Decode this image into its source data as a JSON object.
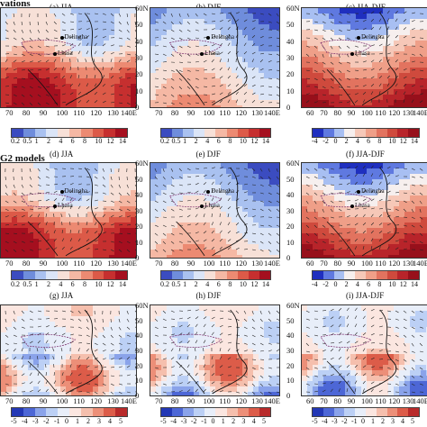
{
  "rows": [
    {
      "title": "vations",
      "panels": [
        {
          "label": "(a) JJA",
          "stations": [
            "Delingha",
            "Lhasa"
          ],
          "ticks_x": [
            "70",
            "80",
            "90",
            "100",
            "110",
            "120",
            "130",
            "140E"
          ],
          "ticks_y": [],
          "cbar_labels": [
            "0.2",
            "0.5",
            "1",
            "2",
            "4",
            "6",
            "8",
            "10",
            "12",
            "14"
          ],
          "scheme": "pos"
        },
        {
          "label": "(b) DJF",
          "stations": [
            "Delingha",
            "Lhasa"
          ],
          "ticks_x": [
            "70",
            "80",
            "90",
            "100",
            "110",
            "120",
            "130",
            "140E"
          ],
          "ticks_y": [
            "60N",
            "50",
            "40",
            "30",
            "20",
            "10",
            "0"
          ],
          "cbar_labels": [
            "0.2",
            "0.5",
            "1",
            "2",
            "4",
            "6",
            "8",
            "10",
            "12",
            "14"
          ],
          "scheme": "pos"
        },
        {
          "label": "(c) JJA-DJF",
          "stations": [
            "Delingha",
            "Lhasa"
          ],
          "ticks_x": [
            "60",
            "70",
            "80",
            "90",
            "100",
            "110",
            "120",
            "130",
            "140E"
          ],
          "ticks_y": [
            "60N",
            "50",
            "40",
            "30",
            "20",
            "10",
            "0"
          ],
          "cbar_labels": [
            "-4",
            "-2",
            "0",
            "2",
            "4",
            "6",
            "8",
            "10",
            "12",
            "14"
          ],
          "scheme": "div"
        }
      ]
    },
    {
      "title": "G2 models",
      "panels": [
        {
          "label": "(d) JJA",
          "stations": [
            "Delingha",
            "Lhasa"
          ],
          "ticks_x": [
            "70",
            "80",
            "90",
            "100",
            "110",
            "120",
            "130",
            "140E"
          ],
          "ticks_y": [],
          "cbar_labels": [
            "0.2",
            "0.5",
            "1",
            "2",
            "4",
            "6",
            "8",
            "10",
            "12",
            "14"
          ],
          "scheme": "pos"
        },
        {
          "label": "(e) DJF",
          "stations": [
            "Delingha",
            "Lhasa"
          ],
          "ticks_x": [
            "70",
            "80",
            "90",
            "100",
            "110",
            "120",
            "130",
            "140E"
          ],
          "ticks_y": [
            "60N",
            "50",
            "40",
            "30",
            "20",
            "10",
            "0"
          ],
          "cbar_labels": [
            "0.2",
            "0.5",
            "1",
            "2",
            "4",
            "6",
            "8",
            "10",
            "12",
            "14"
          ],
          "scheme": "pos"
        },
        {
          "label": "(f) JJA-DJF",
          "stations": [
            "Delingha",
            "Lhasa"
          ],
          "ticks_x": [
            "60",
            "70",
            "80",
            "90",
            "100",
            "110",
            "120",
            "130",
            "140E"
          ],
          "ticks_y": [
            "60N",
            "50",
            "40",
            "30",
            "20",
            "10",
            "0"
          ],
          "cbar_labels": [
            "-4",
            "-2",
            "0",
            "2",
            "4",
            "6",
            "8",
            "10",
            "12",
            "14"
          ],
          "scheme": "div"
        }
      ]
    },
    {
      "title": "",
      "panels": [
        {
          "label": "(g) JJA",
          "stations": [],
          "ticks_x": [
            "70",
            "80",
            "90",
            "100",
            "110",
            "120",
            "130",
            "140E"
          ],
          "ticks_y": [],
          "cbar_labels": [
            "-5",
            "-4",
            "-3",
            "-2",
            "-1",
            "0",
            "1",
            "2",
            "3",
            "4",
            "5"
          ],
          "scheme": "div2"
        },
        {
          "label": "(h) DJF",
          "stations": [],
          "ticks_x": [
            "70",
            "80",
            "90",
            "100",
            "110",
            "120",
            "130",
            "140E"
          ],
          "ticks_y": [
            "60N",
            "50",
            "40",
            "30",
            "20",
            "10",
            "0"
          ],
          "cbar_labels": [
            "-5",
            "-4",
            "-3",
            "-2",
            "-1",
            "0",
            "1",
            "2",
            "3",
            "4",
            "5"
          ],
          "scheme": "div2"
        },
        {
          "label": "(i) JJA-DJF",
          "stations": [],
          "ticks_x": [
            "60",
            "70",
            "80",
            "90",
            "100",
            "110",
            "120",
            "130",
            "140E"
          ],
          "ticks_y": [
            "60N",
            "50",
            "40",
            "30",
            "20",
            "10",
            "0"
          ],
          "cbar_labels": [
            "-5",
            "-4",
            "-3",
            "-2",
            "-1",
            "0",
            "1",
            "2",
            "3",
            "4",
            "5"
          ],
          "scheme": "div2"
        }
      ]
    }
  ],
  "colors": {
    "pos": [
      "#3b4cc0",
      "#6f8ddc",
      "#a9c1f0",
      "#dbe5f7",
      "#f7e0d7",
      "#f5b8a4",
      "#ec8a72",
      "#dc5a48",
      "#c62f2f",
      "#a50f1f"
    ],
    "div": [
      "#1f2fbf",
      "#5f79e0",
      "#a8bff2",
      "#f6efee",
      "#f6c8b8",
      "#ef9f88",
      "#e2735f",
      "#cf4a3d",
      "#b8242a",
      "#97101b"
    ],
    "div2": [
      "#2338b5",
      "#4d67d6",
      "#8aa3ea",
      "#bcd0f5",
      "#e8eef9",
      "#fbe6e0",
      "#f5bfad",
      "#ec8f78",
      "#dc5c49",
      "#b82a2a"
    ]
  }
}
